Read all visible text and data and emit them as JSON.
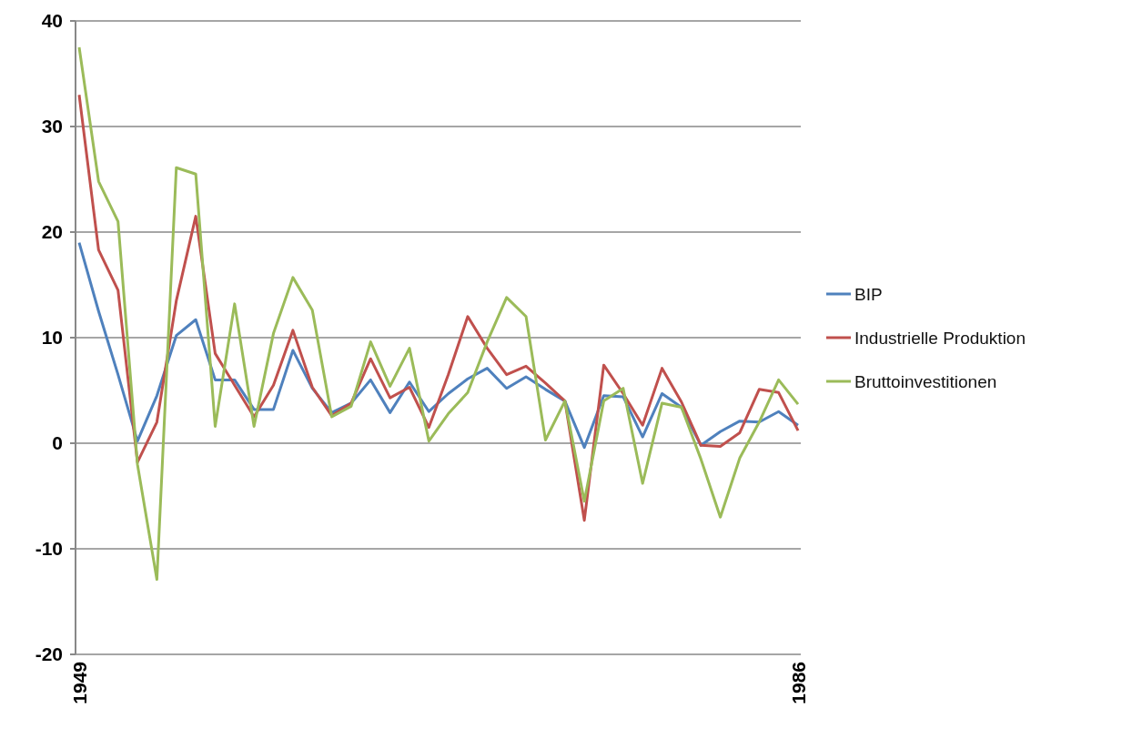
{
  "chart_data": {
    "type": "line",
    "categories": [
      "1949",
      null,
      null,
      null,
      null,
      null,
      null,
      null,
      null,
      null,
      null,
      null,
      null,
      null,
      null,
      null,
      null,
      null,
      null,
      null,
      null,
      null,
      null,
      null,
      null,
      null,
      null,
      null,
      null,
      null,
      null,
      null,
      null,
      null,
      null,
      null,
      null,
      "1986"
    ],
    "series": [
      {
        "name": "BIP",
        "color": "#4f81bd",
        "values": [
          19,
          12.5,
          6.5,
          0.2,
          4.5,
          10.2,
          11.7,
          6,
          6,
          3.2,
          3.2,
          8.8,
          5.2,
          2.9,
          3.8,
          6,
          2.9,
          5.8,
          3,
          4.7,
          6.1,
          7.1,
          5.2,
          6.3,
          5.1,
          4,
          -0.4,
          4.5,
          4.4,
          0.6,
          4.7,
          3.4,
          -0.2,
          1.1,
          2.1,
          2,
          3,
          1.7
        ]
      },
      {
        "name": "Industrielle Produktion",
        "color": "#c0504d",
        "values": [
          33,
          18.3,
          14.5,
          -1.8,
          2,
          13.5,
          21.5,
          8.5,
          5.5,
          2.5,
          5.5,
          10.7,
          5.3,
          2.6,
          3.8,
          8,
          4.3,
          5.3,
          1.5,
          6.5,
          12,
          9,
          6.5,
          7.3,
          5.7,
          4,
          -7.3,
          7.4,
          4.7,
          1.7,
          7.1,
          3.9,
          -0.2,
          -0.3,
          1,
          5.1,
          4.8,
          1.2
        ]
      },
      {
        "name": "Bruttoinvestitionen",
        "color": "#9bbb59",
        "values": [
          37.5,
          24.8,
          21,
          -2,
          -12.9,
          26.1,
          25.5,
          1.6,
          13.2,
          1.6,
          10.4,
          15.7,
          12.6,
          2.5,
          3.5,
          9.6,
          5.4,
          9,
          0.2,
          2.8,
          4.8,
          9.6,
          13.8,
          12,
          0.3,
          4,
          -5.5,
          4,
          5.2,
          -3.8,
          3.8,
          3.4,
          -1.5,
          -7,
          -1.4,
          2,
          6,
          3.7
        ]
      }
    ],
    "ylim": [
      -20,
      40
    ],
    "yticks": [
      -20,
      -10,
      0,
      10,
      20,
      30,
      40
    ],
    "grid": "y",
    "legend": "right"
  }
}
